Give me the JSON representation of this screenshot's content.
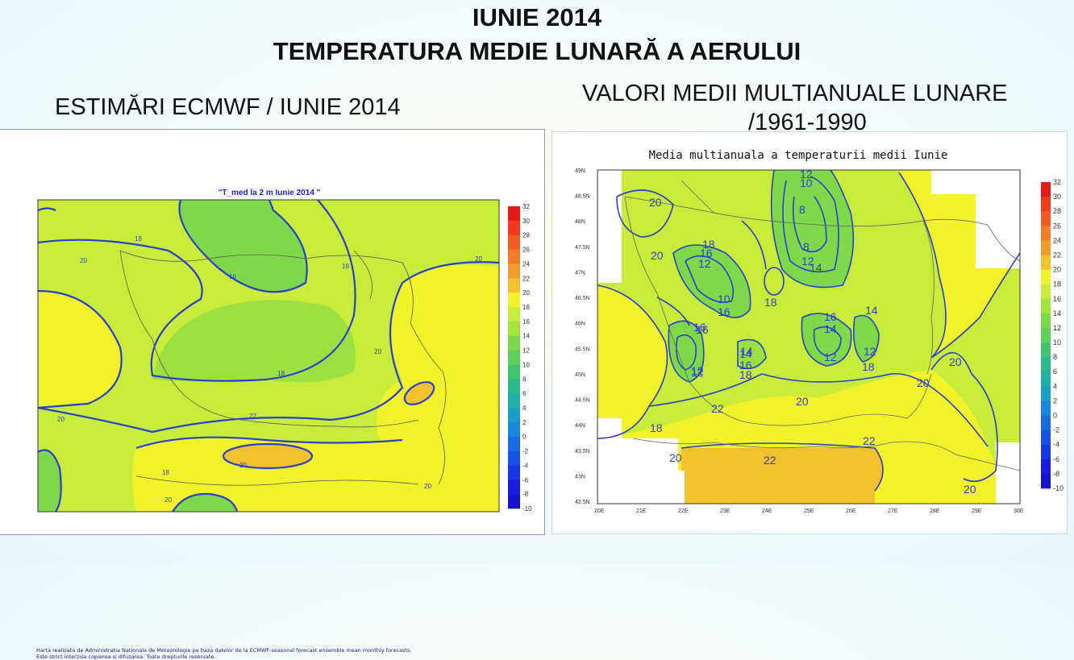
{
  "header": {
    "line1": "IUNIE 2014",
    "line2": "TEMPERATURA MEDIE LUNARĂ A AERULUI"
  },
  "left": {
    "subtitle": "ESTIMĂRI ECMWF / IUNIE 2014",
    "map_title": "\"T_med la 2 m Iunie 2014 \"",
    "contour_labels": [
      "18",
      "20",
      "16",
      "18",
      "20",
      "18",
      "20",
      "20",
      "22",
      "20",
      "18",
      "20",
      "20"
    ],
    "colorbar": [
      "32",
      "30",
      "28",
      "26",
      "24",
      "22",
      "20",
      "18",
      "16",
      "14",
      "12",
      "10",
      "8",
      "6",
      "4",
      "2",
      "0",
      "-2",
      "-4",
      "-6",
      "-8",
      "-10"
    ],
    "footnote_line1": "Harta realizata de Administratia Nationala de Meteorologie pe baza datelor de la ECMWF-seasonal forecast ensemble mean monthly forecasts.",
    "footnote_line2": "Este strict interzisa copierea si difuzarea. Toate drepturile rezervate."
  },
  "right": {
    "subtitle_line1": "VALORI MEDII MULTIANUALE LUNARE",
    "subtitle_line2": "/1961-1990",
    "map_title": "Media multianuala a temperaturii medii Iunie",
    "lat_ticks": [
      "49N",
      "48.5N",
      "48N",
      "47.5N",
      "47N",
      "46.5N",
      "46N",
      "45.5N",
      "45N",
      "44.5N",
      "44N",
      "43.5N",
      "43N",
      "42.5N"
    ],
    "lon_ticks": [
      "20E",
      "21E",
      "22E",
      "23E",
      "24E",
      "25E",
      "26E",
      "27E",
      "28E",
      "29E",
      "30E"
    ],
    "contour_labels": [
      "20",
      "20",
      "18",
      "16",
      "12",
      "10",
      "16",
      "12",
      "10",
      "8",
      "8",
      "12",
      "14",
      "18",
      "16",
      "14",
      "12",
      "14",
      "12",
      "18",
      "16",
      "14",
      "16",
      "18",
      "12",
      "16",
      "14",
      "12",
      "20",
      "20",
      "20",
      "22",
      "18",
      "20",
      "22",
      "22",
      "20"
    ],
    "colorbar": [
      "32",
      "30",
      "28",
      "26",
      "24",
      "22",
      "20",
      "18",
      "16",
      "14",
      "12",
      "10",
      "8",
      "6",
      "4",
      "2",
      "0",
      "-2",
      "-4",
      "-6",
      "-8",
      "-10"
    ]
  },
  "colors": {
    "green": "#7ed94a",
    "yellowgreen": "#c9ec3a",
    "yellow": "#f1f22a",
    "orange": "#f2c12e",
    "contour": "#2b3fcf"
  }
}
